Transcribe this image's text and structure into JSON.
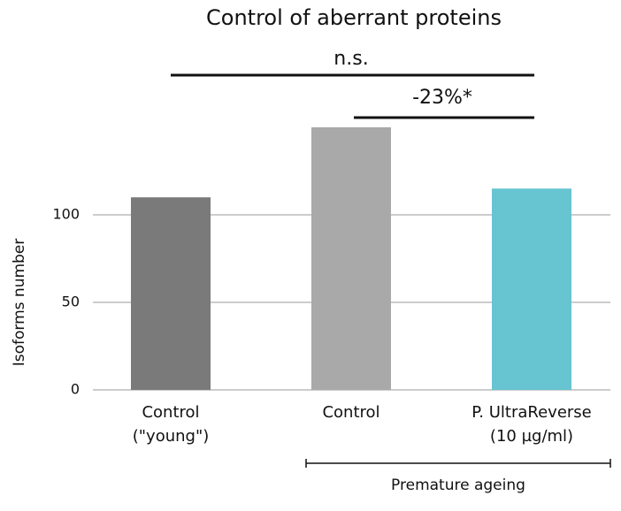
{
  "chart_data": {
    "type": "bar",
    "title": "Control of aberrant proteins",
    "y_label": "Isoforms number",
    "categories": [
      [
        "Control",
        "(\"young\")"
      ],
      [
        "Control"
      ],
      [
        "P. UltraReverse",
        "(10 µg/ml)"
      ]
    ],
    "values": [
      110,
      150,
      115
    ],
    "colors": [
      "#7a7a7a",
      "#a9a9a9",
      "#67c4d1"
    ],
    "ylim": [
      0,
      150
    ],
    "yticks": [
      0,
      50,
      100
    ],
    "grid": true,
    "annotations": [
      "n.s.",
      "-23%*"
    ],
    "group_label": "Premature ageing"
  }
}
